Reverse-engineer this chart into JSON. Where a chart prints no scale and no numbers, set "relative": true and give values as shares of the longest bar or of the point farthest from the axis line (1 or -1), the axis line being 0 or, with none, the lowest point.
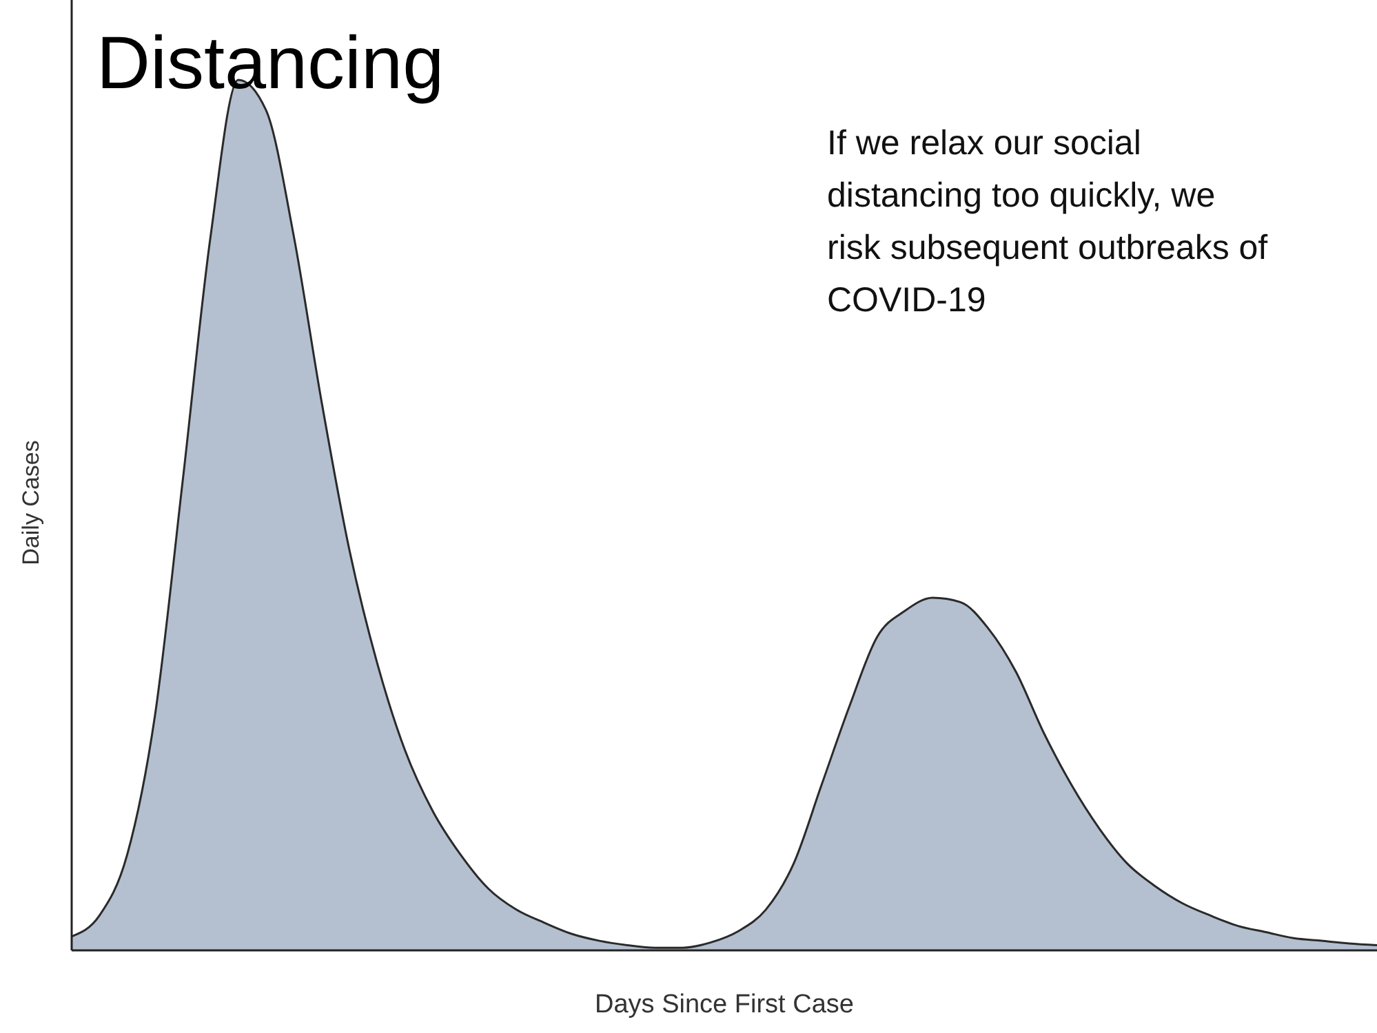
{
  "chart_data": {
    "type": "area",
    "title": "Distancing",
    "xlabel": "Days Since First Case",
    "ylabel": "Daily Cases",
    "relative": true,
    "color": "#b4c0cf",
    "annotations": [
      "If we relax our social distancing too quickly, we risk subsequent outbreaks of COVID-19"
    ],
    "categories": [
      null,
      null,
      null,
      null,
      null,
      null,
      null,
      null,
      null,
      null,
      null,
      null,
      null,
      null,
      null,
      null,
      null,
      null,
      null,
      null,
      null,
      null,
      null,
      null,
      null,
      null,
      null,
      null,
      null,
      null,
      null,
      null,
      null,
      null,
      null,
      null,
      null,
      null,
      null,
      null,
      null,
      null,
      null,
      null,
      null,
      null,
      null,
      null
    ],
    "values": [
      0.016,
      0.04,
      0.11,
      0.27,
      0.54,
      0.82,
      1,
      0.965,
      0.82,
      0.63,
      0.46,
      0.33,
      0.23,
      0.16,
      0.11,
      0.071,
      0.047,
      0.032,
      0.019,
      0.011,
      0.006,
      0.003,
      0.003,
      0.009,
      0.022,
      0.047,
      0.1,
      0.19,
      0.28,
      0.36,
      0.39,
      0.405,
      0.4,
      0.37,
      0.32,
      0.25,
      0.19,
      0.14,
      0.1,
      0.074,
      0.054,
      0.04,
      0.028,
      0.021,
      0.014,
      0.011,
      0.008,
      0.006
    ]
  }
}
